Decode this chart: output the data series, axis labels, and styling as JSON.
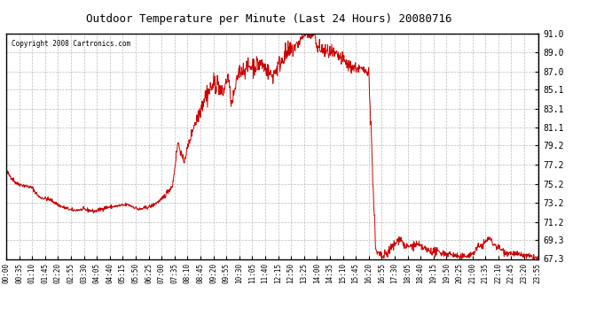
{
  "title": "Outdoor Temperature per Minute (Last 24 Hours) 20080716",
  "copyright": "Copyright 2008 Cartronics.com",
  "line_color": "#cc0000",
  "bg_color": "#ffffff",
  "grid_color": "#bbbbbb",
  "yticks": [
    67.3,
    69.3,
    71.2,
    73.2,
    75.2,
    77.2,
    79.2,
    81.1,
    83.1,
    85.1,
    87.0,
    89.0,
    91.0
  ],
  "ylim": [
    67.3,
    91.0
  ],
  "xtick_labels": [
    "00:00",
    "00:35",
    "01:10",
    "01:45",
    "02:20",
    "02:55",
    "03:30",
    "04:05",
    "04:40",
    "05:15",
    "05:50",
    "06:25",
    "07:00",
    "07:35",
    "08:10",
    "08:45",
    "09:20",
    "09:55",
    "10:30",
    "11:05",
    "11:40",
    "12:15",
    "12:50",
    "13:25",
    "14:00",
    "14:35",
    "15:10",
    "15:45",
    "16:20",
    "16:55",
    "17:30",
    "18:05",
    "18:40",
    "19:15",
    "19:50",
    "20:25",
    "21:00",
    "21:35",
    "22:10",
    "22:45",
    "23:20",
    "23:55"
  ]
}
